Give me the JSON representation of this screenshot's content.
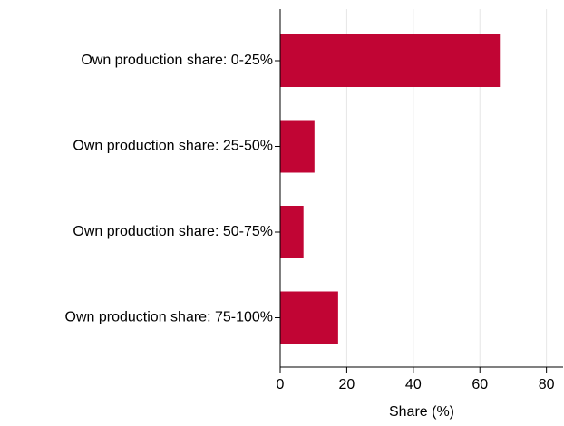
{
  "chart_data": {
    "type": "barh",
    "categories": [
      "Own production share: 0-25%",
      "Own production share: 25-50%",
      "Own production share: 50-75%",
      "Own production share: 75-100%"
    ],
    "values": [
      66,
      10.3,
      7,
      17.4
    ],
    "color": "#c10534",
    "xlabel": "Share (%)",
    "xlim": [
      0,
      85
    ],
    "xticks": [
      0,
      20,
      40,
      60,
      80
    ],
    "grid": true
  }
}
